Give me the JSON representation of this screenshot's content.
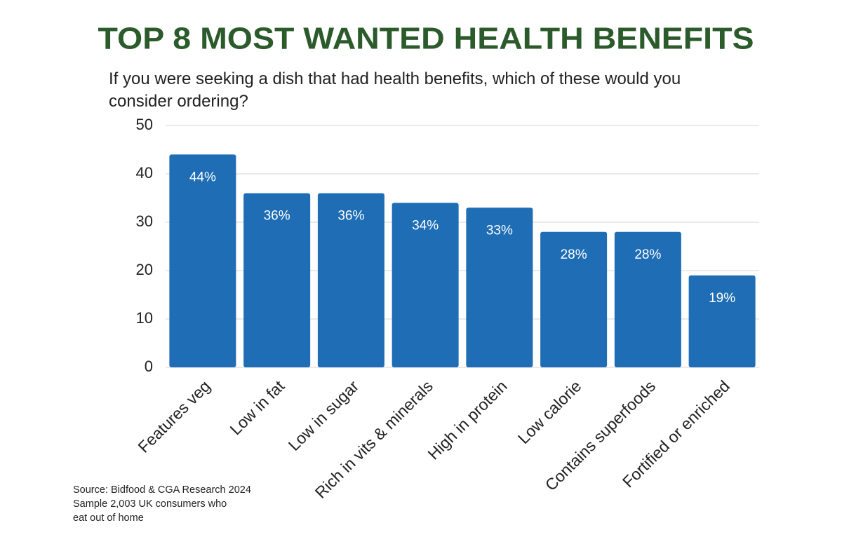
{
  "chart_data": {
    "type": "bar",
    "title": "TOP 8 MOST WANTED HEALTH BENEFITS",
    "subtitle": "If you were seeking a dish that had health benefits, which of these would you consider ordering?",
    "categories": [
      "Features veg",
      "Low in fat",
      "Low in sugar",
      "Rich in vits & minerals",
      "High in protein",
      "Low calorie",
      "Contains superfoods",
      "Fortified or enriched"
    ],
    "values": [
      44,
      36,
      36,
      34,
      33,
      28,
      28,
      19
    ],
    "value_labels": [
      "44%",
      "36%",
      "36%",
      "34%",
      "33%",
      "28%",
      "28%",
      "19%"
    ],
    "color": "#1f6db5",
    "title_color": "#2b5a2b",
    "ylim": [
      0,
      50
    ],
    "yticks": [
      0,
      10,
      20,
      30,
      40,
      50
    ],
    "grid": true,
    "source": [
      "Source: Bidfood & CGA Research 2024",
      "Sample 2,003 UK consumers who",
      "eat out of home"
    ]
  }
}
